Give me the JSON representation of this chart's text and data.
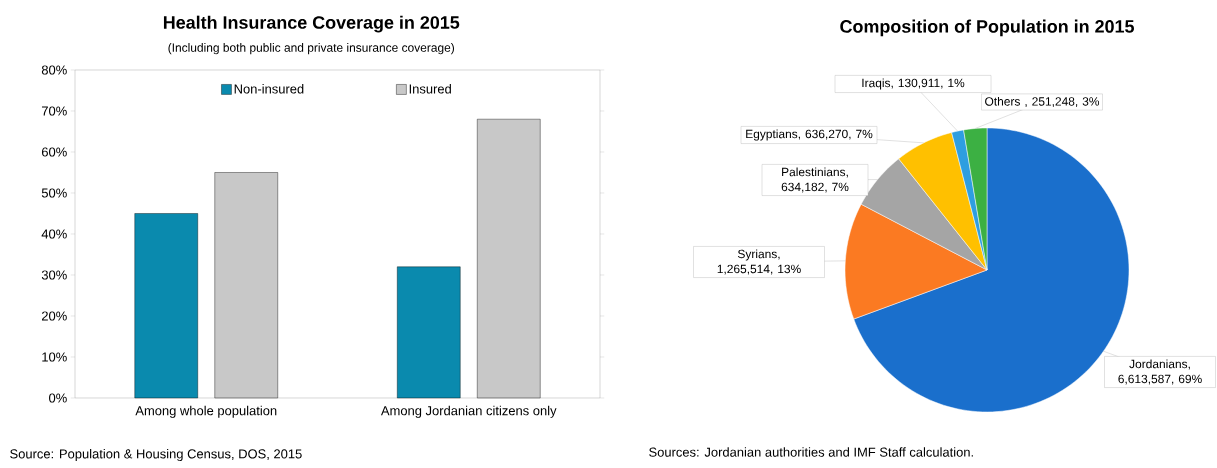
{
  "chart_data": [
    {
      "type": "bar",
      "title": "Health Insurance Coverage in 2015",
      "subtitle": "(Including both public and private insurance coverage)",
      "categories": [
        "Among whole population",
        "Among Jordanian citizens only"
      ],
      "series": [
        {
          "name": "Non-insured",
          "color": "#0a8aae",
          "values": [
            45,
            32
          ]
        },
        {
          "name": "Insured",
          "color": "#c8c8c8",
          "values": [
            55,
            68
          ]
        }
      ],
      "ylim": [
        0,
        80
      ],
      "yticks": [
        {
          "value": 0,
          "label": "0%"
        },
        {
          "value": 10,
          "label": "10%"
        },
        {
          "value": 20,
          "label": "20%"
        },
        {
          "value": 30,
          "label": "30%"
        },
        {
          "value": 40,
          "label": "40%"
        },
        {
          "value": 50,
          "label": "50%"
        },
        {
          "value": 60,
          "label": "60%"
        },
        {
          "value": 70,
          "label": "70%"
        },
        {
          "value": 80,
          "label": "80%"
        }
      ],
      "grid": false,
      "legend": "top",
      "annotations": [
        "Source: Population & Housing Census, DOS, 2015"
      ]
    },
    {
      "type": "pie",
      "title": "Composition of Population in 2015",
      "categories": [
        "Jordanians, 6,613,587, 69%",
        "Syrians, 1,265,514, 13%",
        "Palestinians, 634,182, 7%",
        "Egyptians, 636,270, 7%",
        "Iraqis, 130,911, 1%",
        "Others , 251,248, 3%"
      ],
      "values": [
        6613587,
        1265514,
        634182,
        636270,
        130911,
        251248
      ],
      "colors": [
        "#1a6fcc",
        "#fb7a22",
        "#a5a5a5",
        "#ffc000",
        "#2e9ee0",
        "#3cb043"
      ],
      "annotations": [
        "Sources: Jordanian authorities and IMF Staff calculation."
      ]
    }
  ]
}
